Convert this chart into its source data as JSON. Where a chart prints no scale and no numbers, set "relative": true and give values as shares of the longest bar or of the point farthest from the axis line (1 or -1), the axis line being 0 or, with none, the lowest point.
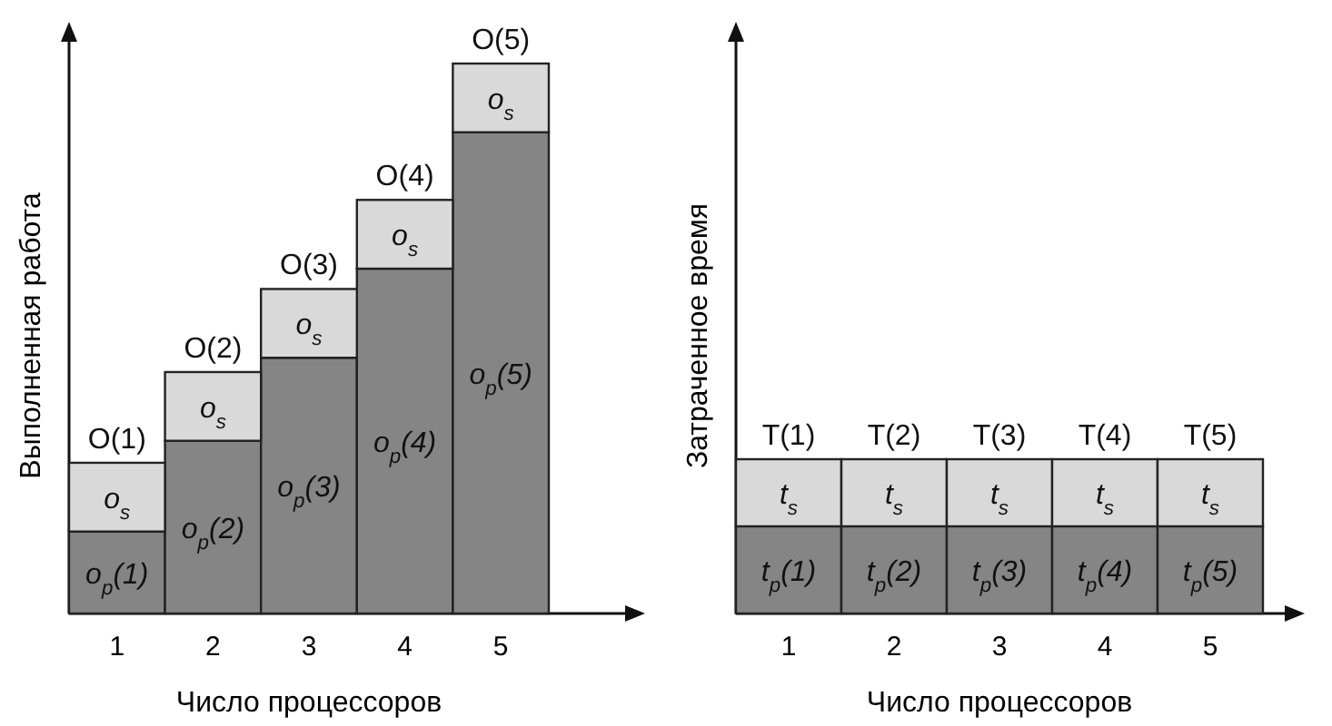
{
  "chart_data": [
    {
      "type": "bar",
      "stacked": true,
      "relative": true,
      "categories": [
        "1",
        "2",
        "3",
        "4",
        "5"
      ],
      "xlabel": "Число процессоров",
      "ylabel": "Выполненная работа",
      "totals": [
        "O(1)",
        "O(2)",
        "O(3)",
        "O(4)",
        "O(5)"
      ],
      "series": [
        {
          "color": "#858585",
          "values": [
            0.149,
            0.314,
            0.465,
            0.627,
            0.875
          ]
        },
        {
          "color": "#d9d9d9",
          "values": [
            0.125,
            0.125,
            0.125,
            0.125,
            0.125
          ]
        }
      ],
      "annotations": [
        "o$_{p}$(1)",
        "o$_{p}$(2)",
        "o$_{p}$(3)",
        "o$_{p}$(4)",
        "o$_{p}$(5)",
        "o$_{s}$",
        "o$_{s}$",
        "o$_{s}$",
        "o$_{s}$",
        "o$_{s}$"
      ]
    },
    {
      "type": "bar",
      "stacked": true,
      "relative": true,
      "categories": [
        "1",
        "2",
        "3",
        "4",
        "5"
      ],
      "xlabel": "Число процессоров",
      "ylabel": "Затраченное время",
      "totals": [
        "T(1)",
        "T(2)",
        "T(3)",
        "T(4)",
        "T(5)"
      ],
      "series": [
        {
          "color": "#858585",
          "values": [
            0.565,
            0.565,
            0.565,
            0.565,
            0.565
          ]
        },
        {
          "color": "#d9d9d9",
          "values": [
            0.435,
            0.435,
            0.435,
            0.435,
            0.435
          ]
        }
      ],
      "annotations": [
        "t$_{p}$(1)",
        "t$_{p}$(2)",
        "t$_{p}$(3)",
        "t$_{p}$(4)",
        "t$_{p}$(5)",
        "t$_{s}$",
        "t$_{s}$",
        "t$_{s}$",
        "t$_{s}$",
        "t$_{s}$"
      ]
    }
  ]
}
